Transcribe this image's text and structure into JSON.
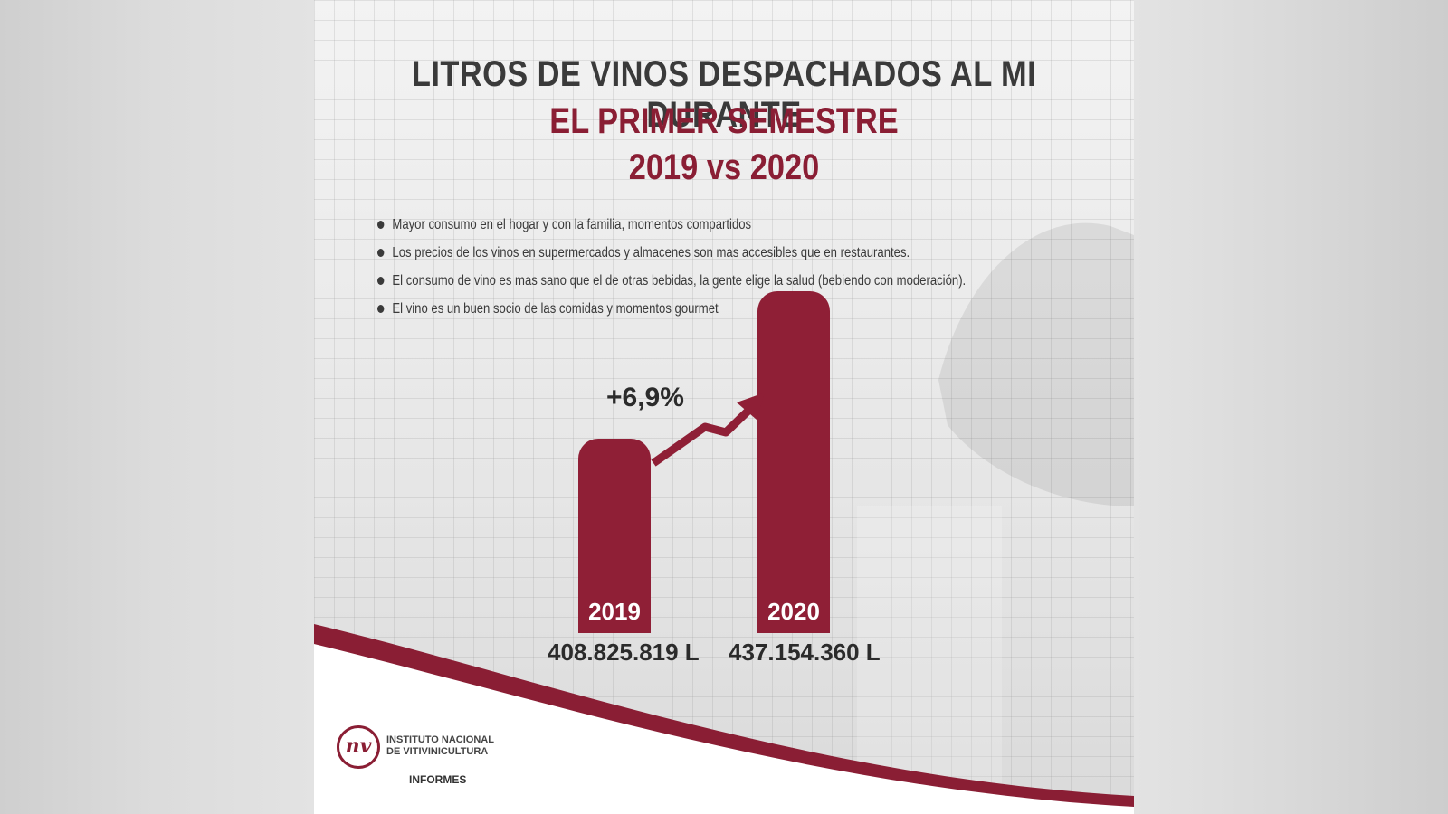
{
  "header": {
    "line1": "LITROS DE VINOS DESPACHADOS AL MI DURANTE",
    "line2": "EL PRIMER SEMESTRE",
    "line3": "2019 vs 2020"
  },
  "bullets": [
    "Mayor consumo en el hogar y con la familia, momentos compartidos",
    "Los precios de los vinos en supermercados y almacenes son mas accesibles que en restaurantes.",
    "El consumo de vino es mas sano que el de otras bebidas, la gente elige la salud (bebiendo con moderación).",
    "El vino es un buen socio de  las comidas y momentos gourmet"
  ],
  "chart_data": {
    "type": "bar",
    "categories": [
      "2019",
      "2020"
    ],
    "values": [
      408825819,
      437154360
    ],
    "value_labels": [
      "408.825.819 L",
      "437.154.360 L"
    ],
    "change_label": "+6,9%",
    "title": "",
    "xlabel": "",
    "ylabel": "",
    "grid": true,
    "colors": {
      "bar": "#8f1f36",
      "accent": "#8a1e34"
    }
  },
  "footer": {
    "logo_text": "nv",
    "org_line1": "INSTITUTO NACIONAL",
    "org_line2": "DE VITIVINICULTURA",
    "section": "INFORMES"
  }
}
